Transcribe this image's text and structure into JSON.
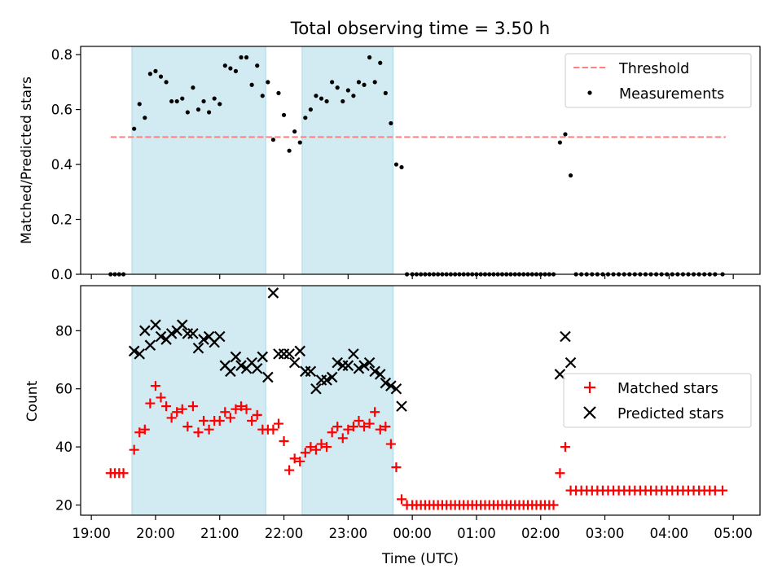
{
  "title": "Total observing time = 3.50 h",
  "colors": {
    "shade": "#add8e6",
    "threshold": "#ff8080",
    "measurement": "#000000",
    "matched": "#ff0000",
    "predicted": "#000000"
  },
  "chart_data": [
    {
      "type": "scatter",
      "ylabel": "Matched/Predicted stars",
      "ylim": [
        0,
        0.83
      ],
      "yticks": [
        0.0,
        0.2,
        0.4,
        0.6,
        0.8
      ],
      "ytick_labels": [
        "0.0",
        "0.2",
        "0.4",
        "0.6",
        "0.8"
      ],
      "xlim": [
        "18:50",
        "05:25"
      ],
      "shaded_intervals": [
        [
          "19:38",
          "21:43"
        ],
        [
          "22:17",
          "23:42"
        ]
      ],
      "threshold": {
        "name": "Threshold",
        "y": 0.5,
        "x": [
          "19:18",
          "04:53"
        ]
      },
      "legend": {
        "placement": "top-right",
        "entries": [
          "Threshold",
          "Measurements"
        ]
      },
      "series": [
        {
          "name": "Measurements",
          "x": [
            "19:18",
            "19:22",
            "19:26",
            "19:30",
            "19:40",
            "19:45",
            "19:50",
            "19:55",
            "20:00",
            "20:05",
            "20:10",
            "20:15",
            "20:20",
            "20:25",
            "20:30",
            "20:35",
            "20:40",
            "20:45",
            "20:50",
            "20:55",
            "21:00",
            "21:05",
            "21:10",
            "21:15",
            "21:20",
            "21:25",
            "21:30",
            "21:35",
            "21:40",
            "21:45",
            "21:50",
            "21:55",
            "22:00",
            "22:05",
            "22:10",
            "22:15",
            "22:20",
            "22:25",
            "22:30",
            "22:35",
            "22:40",
            "22:45",
            "22:50",
            "22:55",
            "23:00",
            "23:05",
            "23:10",
            "23:15",
            "23:20",
            "23:25",
            "23:30",
            "23:35",
            "23:40",
            "23:45",
            "23:50",
            "23:55",
            "00:00",
            "00:04",
            "00:08",
            "00:12",
            "00:16",
            "00:20",
            "00:24",
            "00:28",
            "00:32",
            "00:36",
            "00:40",
            "00:44",
            "00:48",
            "00:52",
            "00:56",
            "01:00",
            "01:04",
            "01:08",
            "01:12",
            "01:16",
            "01:20",
            "01:24",
            "01:28",
            "01:32",
            "01:36",
            "01:40",
            "01:44",
            "01:48",
            "01:52",
            "01:56",
            "02:00",
            "02:04",
            "02:08",
            "02:12",
            "02:18",
            "02:23",
            "02:28",
            "02:33",
            "02:38",
            "02:43",
            "02:48",
            "02:53",
            "02:58",
            "03:03",
            "03:08",
            "03:13",
            "03:18",
            "03:23",
            "03:28",
            "03:33",
            "03:38",
            "03:43",
            "03:48",
            "03:53",
            "03:58",
            "04:03",
            "04:08",
            "04:13",
            "04:18",
            "04:23",
            "04:28",
            "04:33",
            "04:38",
            "04:43",
            "04:50"
          ],
          "y": [
            0,
            0,
            0,
            0,
            0.53,
            0.62,
            0.57,
            0.73,
            0.74,
            0.72,
            0.7,
            0.63,
            0.63,
            0.64,
            0.59,
            0.68,
            0.6,
            0.63,
            0.59,
            0.64,
            0.62,
            0.76,
            0.75,
            0.74,
            0.79,
            0.79,
            0.69,
            0.76,
            0.65,
            0.7,
            0.49,
            0.66,
            0.58,
            0.45,
            0.52,
            0.48,
            0.57,
            0.6,
            0.65,
            0.64,
            0.63,
            0.7,
            0.68,
            0.63,
            0.67,
            0.65,
            0.7,
            0.69,
            0.79,
            0.7,
            0.77,
            0.66,
            0.55,
            0.4,
            0.39,
            0,
            0,
            0,
            0,
            0,
            0,
            0,
            0,
            0,
            0,
            0,
            0,
            0,
            0,
            0,
            0,
            0,
            0,
            0,
            0,
            0,
            0,
            0,
            0,
            0,
            0,
            0,
            0,
            0,
            0,
            0,
            0,
            0,
            0,
            0,
            0.48,
            0.51,
            0.36,
            0,
            0,
            0,
            0,
            0,
            0,
            0,
            0,
            0,
            0,
            0,
            0,
            0,
            0,
            0,
            0,
            0,
            0,
            0,
            0,
            0,
            0,
            0,
            0,
            0,
            0,
            0,
            0
          ]
        }
      ]
    },
    {
      "type": "scatter",
      "xlabel": "Time (UTC)",
      "ylabel": "Count",
      "ylim": [
        16.5,
        95.5
      ],
      "yticks": [
        20,
        40,
        60,
        80
      ],
      "ytick_labels": [
        "20",
        "40",
        "60",
        "80"
      ],
      "xlim": [
        "18:50",
        "05:25"
      ],
      "xticks": [
        "19:00",
        "20:00",
        "21:00",
        "22:00",
        "23:00",
        "00:00",
        "01:00",
        "02:00",
        "03:00",
        "04:00",
        "05:00"
      ],
      "shaded_intervals": [
        [
          "19:38",
          "21:43"
        ],
        [
          "22:17",
          "23:42"
        ]
      ],
      "legend": {
        "placement": "center-right",
        "entries": [
          "Matched stars",
          "Predicted stars"
        ]
      },
      "series": [
        {
          "name": "Matched stars",
          "marker": "plus",
          "x": [
            "19:18",
            "19:22",
            "19:26",
            "19:30",
            "19:40",
            "19:45",
            "19:50",
            "19:55",
            "20:00",
            "20:05",
            "20:10",
            "20:15",
            "20:20",
            "20:25",
            "20:30",
            "20:35",
            "20:40",
            "20:45",
            "20:50",
            "20:55",
            "21:00",
            "21:05",
            "21:10",
            "21:15",
            "21:20",
            "21:25",
            "21:30",
            "21:35",
            "21:40",
            "21:45",
            "21:50",
            "21:55",
            "22:00",
            "22:05",
            "22:10",
            "22:15",
            "22:20",
            "22:25",
            "22:30",
            "22:35",
            "22:40",
            "22:45",
            "22:50",
            "22:55",
            "23:00",
            "23:05",
            "23:10",
            "23:15",
            "23:20",
            "23:25",
            "23:30",
            "23:35",
            "23:40",
            "23:45",
            "23:50",
            "23:55",
            "00:00",
            "00:04",
            "00:08",
            "00:12",
            "00:16",
            "00:20",
            "00:24",
            "00:28",
            "00:32",
            "00:36",
            "00:40",
            "00:44",
            "00:48",
            "00:52",
            "00:56",
            "01:00",
            "01:04",
            "01:08",
            "01:12",
            "01:16",
            "01:20",
            "01:24",
            "01:28",
            "01:32",
            "01:36",
            "01:40",
            "01:44",
            "01:48",
            "01:52",
            "01:56",
            "02:00",
            "02:04",
            "02:08",
            "02:12",
            "02:18",
            "02:23",
            "02:28",
            "02:33",
            "02:38",
            "02:43",
            "02:48",
            "02:53",
            "02:58",
            "03:03",
            "03:08",
            "03:13",
            "03:18",
            "03:23",
            "03:28",
            "03:33",
            "03:38",
            "03:43",
            "03:48",
            "03:53",
            "03:58",
            "04:03",
            "04:08",
            "04:13",
            "04:18",
            "04:23",
            "04:28",
            "04:33",
            "04:38",
            "04:43",
            "04:50"
          ],
          "y": [
            31,
            31,
            31,
            31,
            39,
            45,
            46,
            55,
            61,
            57,
            54,
            50,
            52,
            53,
            47,
            54,
            45,
            49,
            46,
            49,
            49,
            52,
            50,
            53,
            54,
            53,
            49,
            51,
            46,
            46,
            46,
            48,
            42,
            32,
            36,
            35,
            38,
            40,
            39,
            41,
            40,
            45,
            47,
            43,
            46,
            47,
            49,
            47,
            48,
            52,
            46,
            47,
            41,
            33,
            22,
            20,
            20,
            20,
            20,
            20,
            20,
            20,
            20,
            20,
            20,
            20,
            20,
            20,
            20,
            20,
            20,
            20,
            20,
            20,
            20,
            20,
            20,
            20,
            20,
            20,
            20,
            20,
            20,
            20,
            20,
            20,
            20,
            20,
            20,
            20,
            31,
            40,
            25,
            25,
            25,
            25,
            25,
            25,
            25,
            25,
            25,
            25,
            25,
            25,
            25,
            25,
            25,
            25,
            25,
            25,
            25,
            25,
            25,
            25,
            25,
            25,
            25,
            25,
            25,
            25,
            25
          ]
        },
        {
          "name": "Predicted stars",
          "marker": "x",
          "x": [
            "19:40",
            "19:45",
            "19:50",
            "19:55",
            "20:00",
            "20:05",
            "20:10",
            "20:15",
            "20:20",
            "20:25",
            "20:30",
            "20:35",
            "20:40",
            "20:45",
            "20:50",
            "20:55",
            "21:00",
            "21:05",
            "21:10",
            "21:15",
            "21:20",
            "21:25",
            "21:30",
            "21:35",
            "21:40",
            "21:45",
            "21:50",
            "21:55",
            "22:00",
            "22:05",
            "22:10",
            "22:15",
            "22:20",
            "22:25",
            "22:30",
            "22:35",
            "22:40",
            "22:45",
            "22:50",
            "22:55",
            "23:00",
            "23:05",
            "23:10",
            "23:15",
            "23:20",
            "23:25",
            "23:30",
            "23:35",
            "23:40",
            "23:45",
            "23:50",
            "02:18",
            "02:23",
            "02:28"
          ],
          "y": [
            73,
            72,
            80,
            75,
            82,
            78,
            77,
            79,
            80,
            82,
            79,
            79,
            74,
            77,
            78,
            76,
            78,
            68,
            66,
            71,
            68,
            67,
            69,
            67,
            71,
            64,
            93,
            72,
            72,
            72,
            69,
            73,
            66,
            66,
            60,
            63,
            63,
            64,
            69,
            68,
            68,
            72,
            67,
            68,
            69,
            66,
            65,
            62,
            61,
            60,
            54,
            65,
            78,
            69
          ]
        }
      ]
    }
  ]
}
